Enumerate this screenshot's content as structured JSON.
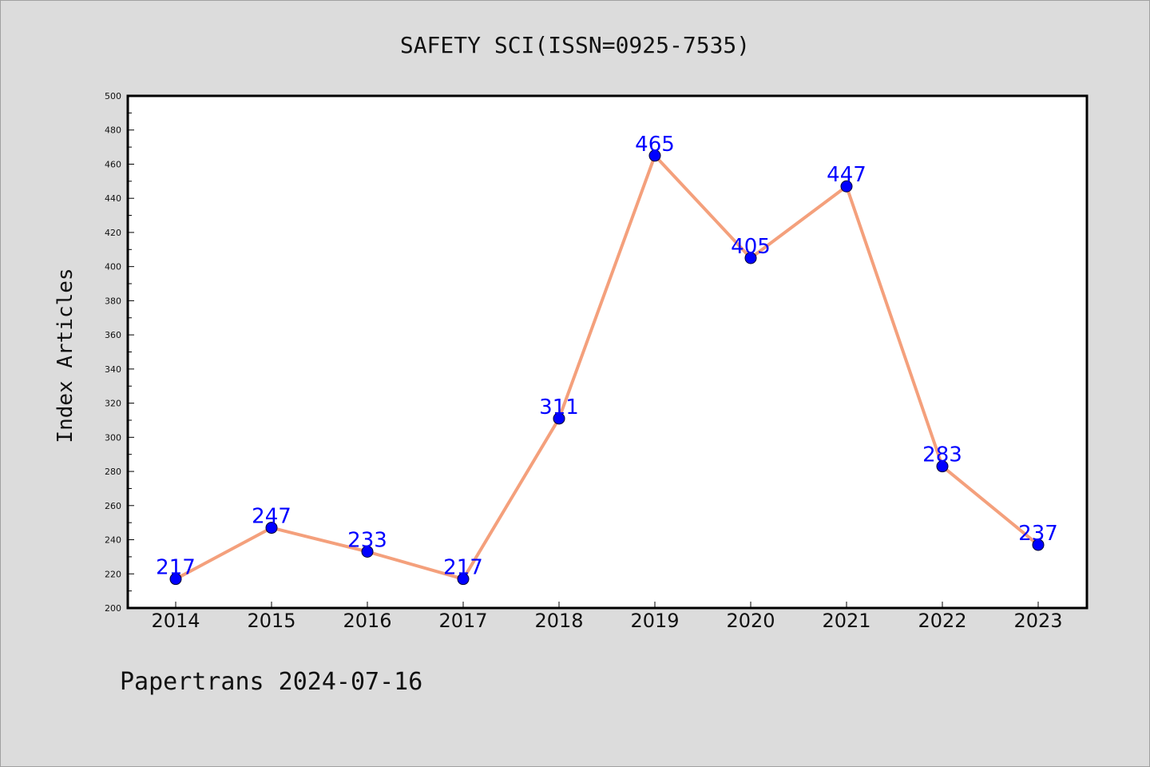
{
  "chart_data": {
    "type": "line",
    "title": "SAFETY SCI(ISSN=0925-7535)",
    "xlabel": "",
    "ylabel": "Index Articles",
    "categories": [
      "2014",
      "2015",
      "2016",
      "2017",
      "2018",
      "2019",
      "2020",
      "2021",
      "2022",
      "2023"
    ],
    "series": [
      {
        "values": [
          217,
          247,
          233,
          217,
          311,
          465,
          405,
          447,
          283,
          237
        ]
      }
    ],
    "ylim": [
      200,
      500
    ],
    "yticks": [
      200,
      220,
      240,
      260,
      280,
      300,
      320,
      340,
      360,
      380,
      400,
      420,
      440,
      460,
      480,
      500
    ],
    "grid": false,
    "line_color": "#f4a07c",
    "marker_color": "#0000ff",
    "label_color": "#0000ff",
    "data_labels": true
  },
  "footer": "Papertrans 2024-07-16"
}
